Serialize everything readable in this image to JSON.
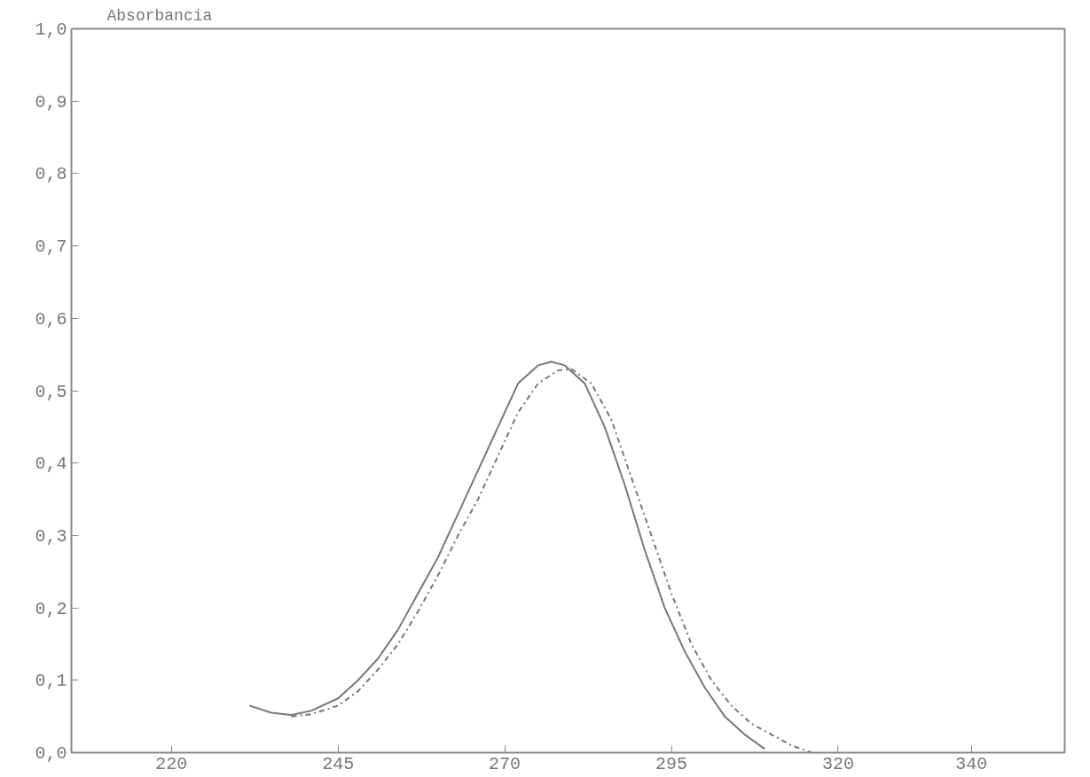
{
  "chart_data": {
    "type": "line",
    "ylabel": "Absorbancia",
    "xlim": [
      205,
      354
    ],
    "ylim": [
      0,
      1
    ],
    "xticks": [
      220,
      245,
      270,
      295,
      320,
      340
    ],
    "yticks": [
      {
        "value": 0,
        "label": "0,0"
      },
      {
        "value": 0.1,
        "label": "0,1"
      },
      {
        "value": 0.2,
        "label": "0,2"
      },
      {
        "value": 0.3,
        "label": "0,3"
      },
      {
        "value": 0.4,
        "label": "0,4"
      },
      {
        "value": 0.5,
        "label": "0,5"
      },
      {
        "value": 0.6,
        "label": "0,6"
      },
      {
        "value": 0.7,
        "label": "0,7"
      },
      {
        "value": 0.8,
        "label": "0,8"
      },
      {
        "value": 0.9,
        "label": "0,9"
      },
      {
        "value": 1,
        "label": "1,0"
      }
    ],
    "grid": false,
    "series": [
      {
        "color": "#777777",
        "line_style": "solid",
        "x": [
          231.7,
          235,
          238,
          241,
          245,
          248,
          251,
          254,
          257,
          260,
          263,
          266,
          269,
          272,
          275,
          277,
          279,
          282,
          285,
          288,
          291,
          294,
          297,
          300,
          303,
          306,
          309
        ],
        "values": [
          0.065,
          0.055,
          0.052,
          0.058,
          0.075,
          0.1,
          0.13,
          0.17,
          0.22,
          0.27,
          0.33,
          0.39,
          0.45,
          0.51,
          0.535,
          0.54,
          0.535,
          0.51,
          0.45,
          0.37,
          0.28,
          0.2,
          0.14,
          0.09,
          0.05,
          0.025,
          0.005
        ]
      },
      {
        "color": "#777777",
        "line_style": "dashed",
        "x": [
          238,
          241,
          245,
          248,
          251,
          254,
          257,
          260,
          263,
          266,
          269,
          272,
          275,
          278,
          280,
          283,
          286,
          289,
          292,
          295,
          298,
          301,
          304,
          307,
          310,
          313,
          316
        ],
        "values": [
          0.05,
          0.053,
          0.065,
          0.085,
          0.115,
          0.15,
          0.195,
          0.245,
          0.3,
          0.35,
          0.41,
          0.47,
          0.51,
          0.528,
          0.53,
          0.51,
          0.46,
          0.38,
          0.3,
          0.22,
          0.15,
          0.1,
          0.065,
          0.04,
          0.025,
          0.01,
          0.0
        ]
      }
    ]
  }
}
